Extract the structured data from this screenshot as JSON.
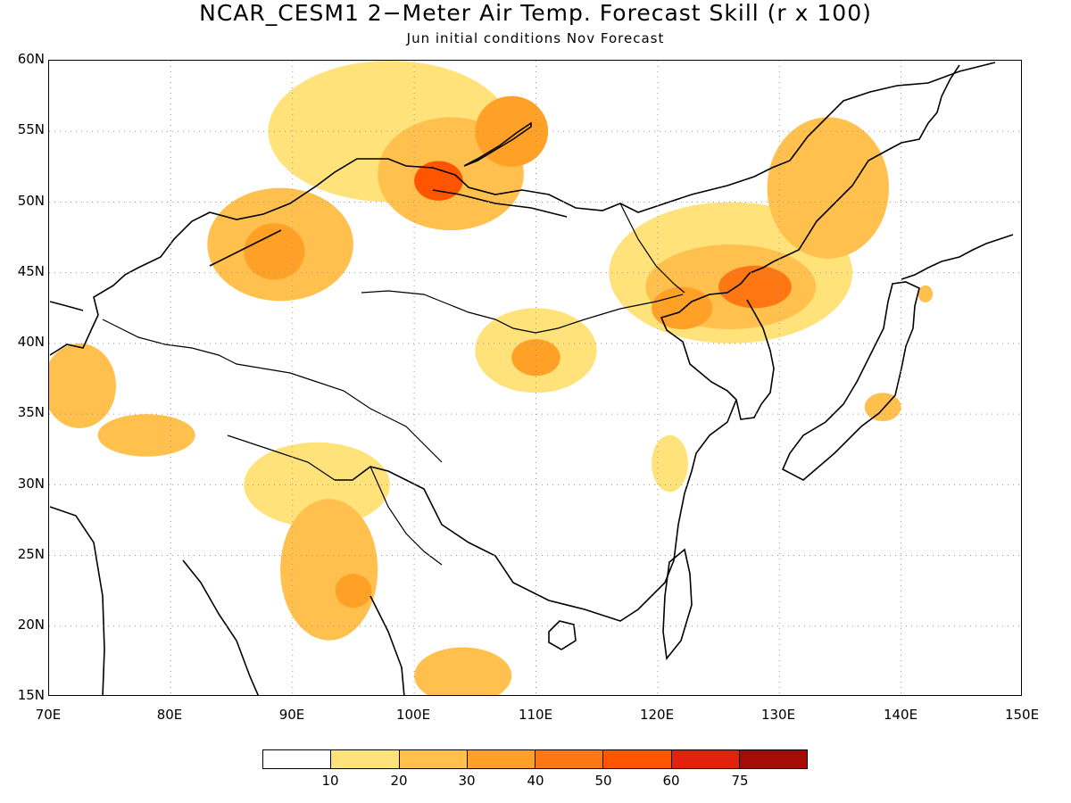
{
  "figure": {
    "title": "NCAR_CESM1 2−Meter Air Temp. Forecast Skill (r x 100)",
    "subtitle": "Jun initial conditions  Nov Forecast"
  },
  "axes": {
    "lat_labels": [
      "60N",
      "55N",
      "50N",
      "45N",
      "40N",
      "35N",
      "30N",
      "25N",
      "20N",
      "15N"
    ],
    "lon_labels": [
      "70E",
      "80E",
      "90E",
      "100E",
      "110E",
      "120E",
      "130E",
      "140E",
      "150E"
    ],
    "lat_range": [
      15,
      60
    ],
    "lon_range": [
      70,
      150
    ],
    "grid": "dotted"
  },
  "colorbar": {
    "colors": [
      "#ffffff",
      "#ffe27a",
      "#ffc04d",
      "#ffa126",
      "#ff7712",
      "#ff5500",
      "#e3220e",
      "#a50c06"
    ],
    "labels": [
      "10",
      "20",
      "30",
      "40",
      "50",
      "60",
      "75"
    ]
  },
  "skill_regions": [
    {
      "lon": 98,
      "lat": 55,
      "rx": 10,
      "ry": 5,
      "level": 1
    },
    {
      "lon": 103,
      "lat": 52,
      "rx": 6,
      "ry": 4,
      "level": 2
    },
    {
      "lon": 102,
      "lat": 51.5,
      "rx": 2,
      "ry": 1.4,
      "level": 5
    },
    {
      "lon": 108,
      "lat": 55,
      "rx": 3,
      "ry": 2.5,
      "level": 3
    },
    {
      "lon": 89,
      "lat": 47,
      "rx": 6,
      "ry": 4,
      "level": 2
    },
    {
      "lon": 88.5,
      "lat": 46.5,
      "rx": 2.5,
      "ry": 2,
      "level": 3
    },
    {
      "lon": 126,
      "lat": 45,
      "rx": 10,
      "ry": 5,
      "level": 1
    },
    {
      "lon": 126,
      "lat": 44,
      "rx": 7,
      "ry": 3,
      "level": 2
    },
    {
      "lon": 128,
      "lat": 44,
      "rx": 3,
      "ry": 1.5,
      "level": 4
    },
    {
      "lon": 122,
      "lat": 42.5,
      "rx": 2.5,
      "ry": 1.5,
      "level": 3
    },
    {
      "lon": 134,
      "lat": 51,
      "rx": 5,
      "ry": 5,
      "level": 2
    },
    {
      "lon": 110,
      "lat": 39.5,
      "rx": 5,
      "ry": 3,
      "level": 1
    },
    {
      "lon": 110,
      "lat": 39,
      "rx": 2,
      "ry": 1.3,
      "level": 3
    },
    {
      "lon": 72.5,
      "lat": 37,
      "rx": 3,
      "ry": 3,
      "level": 2
    },
    {
      "lon": 78,
      "lat": 33.5,
      "rx": 4,
      "ry": 1.5,
      "level": 2
    },
    {
      "lon": 92,
      "lat": 30,
      "rx": 6,
      "ry": 3,
      "level": 1
    },
    {
      "lon": 93,
      "lat": 24,
      "rx": 4,
      "ry": 5,
      "level": 2
    },
    {
      "lon": 95,
      "lat": 22.5,
      "rx": 1.5,
      "ry": 1.2,
      "level": 3
    },
    {
      "lon": 104,
      "lat": 16.5,
      "rx": 4,
      "ry": 2,
      "level": 2
    },
    {
      "lon": 121,
      "lat": 31.5,
      "rx": 1.5,
      "ry": 2,
      "level": 1
    },
    {
      "lon": 138.5,
      "lat": 35.5,
      "rx": 1.5,
      "ry": 1,
      "level": 2
    },
    {
      "lon": 142,
      "lat": 43.5,
      "rx": 0.6,
      "ry": 0.6,
      "level": 2
    }
  ]
}
